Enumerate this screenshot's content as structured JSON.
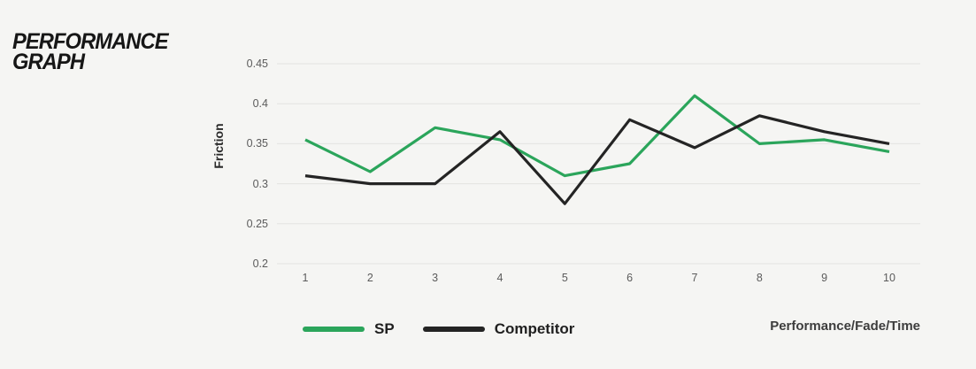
{
  "page": {
    "background": "#f5f5f3"
  },
  "header": {
    "title_line1": "PERFORMANCE",
    "title_line2": "GRAPH"
  },
  "chart_data": {
    "type": "line",
    "x": [
      1,
      2,
      3,
      4,
      5,
      6,
      7,
      8,
      9,
      10
    ],
    "x_tick_labels": [
      "1",
      "2",
      "3",
      "4",
      "5",
      "6",
      "7",
      "8",
      "9",
      "10"
    ],
    "ylabel": "Friction",
    "xlabel": "",
    "y_ticks": [
      0.45,
      0.4,
      0.35,
      0.3,
      0.25,
      0.2
    ],
    "y_tick_labels": [
      "0.45",
      "0.4",
      "0.35",
      "0.3",
      "0.25",
      "0.2"
    ],
    "ylim": [
      0.2,
      0.45
    ],
    "grid": "horizontal-only",
    "legend_position": "bottom",
    "series": [
      {
        "name": "SP",
        "color": "#2BA55B",
        "values": [
          0.355,
          0.315,
          0.37,
          0.355,
          0.31,
          0.325,
          0.41,
          0.35,
          0.355,
          0.34
        ]
      },
      {
        "name": "Competitor",
        "color": "#242424",
        "values": [
          0.31,
          0.3,
          0.3,
          0.365,
          0.275,
          0.38,
          0.345,
          0.385,
          0.365,
          0.35
        ]
      }
    ],
    "footnote": "Performance/Fade/Time"
  },
  "colors": {
    "background": "#f5f5f3",
    "gridline": "#e4e3e1",
    "tick_text": "#5b5b5b",
    "title_text": "#161616"
  }
}
